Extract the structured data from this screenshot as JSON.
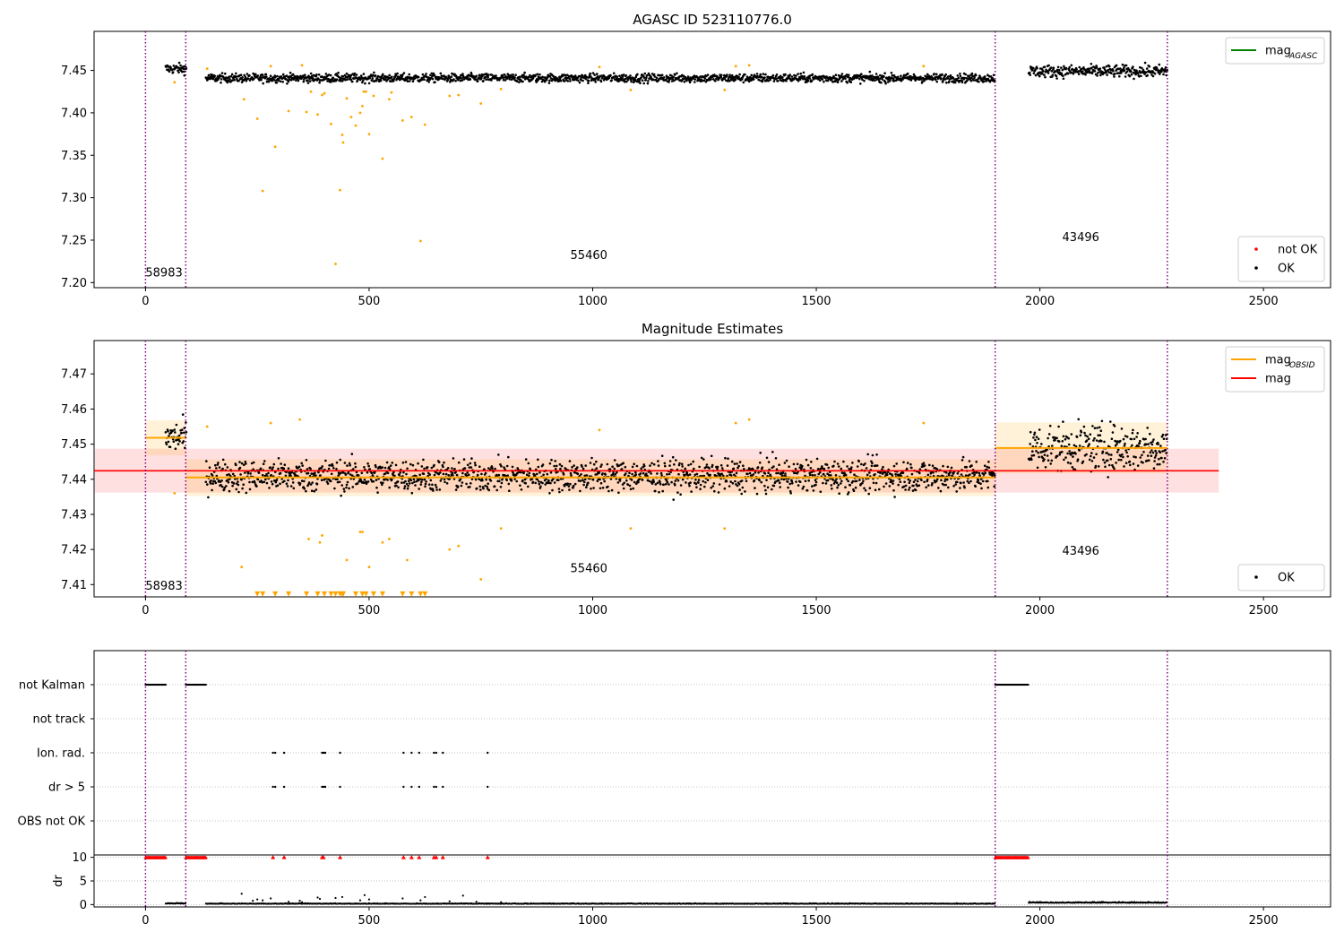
{
  "chart_data": [
    {
      "type": "scatter",
      "title": "AGASC ID 523110776.0",
      "xlabel": "",
      "ylabel": "",
      "xlim": [
        -115,
        2650
      ],
      "ylim": [
        7.194,
        7.496
      ],
      "yticks": [
        "7.20",
        "7.25",
        "7.30",
        "7.35",
        "7.40",
        "7.45"
      ],
      "xticks": [
        "0",
        "500",
        "1000",
        "1500",
        "2000",
        "2500"
      ],
      "obsid_bounds": [
        0,
        90,
        1900,
        2285
      ],
      "obsids": [
        {
          "label": "58983",
          "x": 0,
          "y": 7.207
        },
        {
          "label": "55460",
          "x": 950,
          "y": 7.228
        },
        {
          "label": "43496",
          "x": 2050,
          "y": 7.249
        }
      ],
      "legends": [
        {
          "position": "top-right",
          "entries": [
            {
              "label": "mag",
              "sub": "AGASC",
              "color": "#008000",
              "kind": "line"
            }
          ]
        },
        {
          "position": "bottom-right",
          "entries": [
            {
              "label": "not OK",
              "color": "#ff0000",
              "kind": "dot"
            },
            {
              "label": "OK",
              "color": "#000000",
              "kind": "dot"
            }
          ]
        }
      ],
      "series": [
        {
          "name": "OK",
          "color": "#000000",
          "segments": [
            {
              "x0": 45,
              "x1": 92,
              "mean": 7.452,
              "spread": 0.006
            },
            {
              "x0": 135,
              "x1": 1900,
              "mean": 7.441,
              "spread": 0.005
            },
            {
              "x0": 1975,
              "x1": 2285,
              "mean": 7.449,
              "spread": 0.007
            }
          ]
        },
        {
          "name": "not OK",
          "color": "#ffa500",
          "points": [
            [
              65,
              7.436
            ],
            [
              138,
              7.452
            ],
            [
              220,
              7.416
            ],
            [
              250,
              7.393
            ],
            [
              262,
              7.308
            ],
            [
              280,
              7.455
            ],
            [
              290,
              7.36
            ],
            [
              320,
              7.402
            ],
            [
              350,
              7.456
            ],
            [
              360,
              7.401
            ],
            [
              370,
              7.425
            ],
            [
              385,
              7.398
            ],
            [
              395,
              7.421
            ],
            [
              400,
              7.423
            ],
            [
              415,
              7.387
            ],
            [
              425,
              7.222
            ],
            [
              435,
              7.309
            ],
            [
              440,
              7.374
            ],
            [
              442,
              7.365
            ],
            [
              450,
              7.417
            ],
            [
              460,
              7.395
            ],
            [
              470,
              7.385
            ],
            [
              480,
              7.4
            ],
            [
              485,
              7.408
            ],
            [
              488,
              7.425
            ],
            [
              493,
              7.425
            ],
            [
              500,
              7.375
            ],
            [
              510,
              7.42
            ],
            [
              530,
              7.346
            ],
            [
              545,
              7.416
            ],
            [
              550,
              7.424
            ],
            [
              575,
              7.391
            ],
            [
              595,
              7.395
            ],
            [
              615,
              7.249
            ],
            [
              625,
              7.386
            ],
            [
              680,
              7.42
            ],
            [
              700,
              7.421
            ],
            [
              750,
              7.411
            ],
            [
              795,
              7.428
            ],
            [
              1015,
              7.454
            ],
            [
              1085,
              7.427
            ],
            [
              1295,
              7.427
            ],
            [
              1320,
              7.455
            ],
            [
              1350,
              7.456
            ],
            [
              1740,
              7.455
            ]
          ]
        }
      ]
    },
    {
      "type": "scatter",
      "title": "Magnitude Estimates",
      "xlabel": "",
      "ylabel": "",
      "xlim": [
        -115,
        2650
      ],
      "ylim": [
        7.4065,
        7.4795
      ],
      "yticks": [
        "7.41",
        "7.42",
        "7.43",
        "7.44",
        "7.45",
        "7.46",
        "7.47"
      ],
      "xticks": [
        "0",
        "500",
        "1000",
        "1500",
        "2000",
        "2500"
      ],
      "obsid_bounds": [
        0,
        90,
        1900,
        2285
      ],
      "obsids": [
        {
          "label": "58983",
          "x": 0,
          "y": 7.4085
        },
        {
          "label": "55460",
          "x": 950,
          "y": 7.4135
        },
        {
          "label": "43496",
          "x": 2050,
          "y": 7.4185
        }
      ],
      "legends": [
        {
          "position": "top-right",
          "entries": [
            {
              "label": "mag",
              "sub": "OBSID",
              "color": "#ffa500",
              "kind": "line"
            },
            {
              "label": "mag",
              "color": "#ff0000",
              "kind": "line"
            }
          ]
        },
        {
          "position": "bottom-right",
          "entries": [
            {
              "label": "OK",
              "color": "#000000",
              "kind": "dot"
            }
          ]
        }
      ],
      "mag": {
        "value": 7.4424,
        "band": [
          7.4362,
          7.4487
        ],
        "x0": -115,
        "x1": 2400,
        "color": "#ff0000"
      },
      "mag_obsid": [
        {
          "x0": 0,
          "x1": 90,
          "value": 7.4518,
          "band": [
            7.4468,
            7.4568
          ]
        },
        {
          "x0": 90,
          "x1": 1900,
          "value": 7.4405,
          "band": [
            7.4352,
            7.4457
          ]
        },
        {
          "x0": 1900,
          "x1": 2285,
          "value": 7.4489,
          "band": [
            7.4417,
            7.4562
          ]
        }
      ],
      "series": [
        {
          "name": "OK",
          "color": "#000000",
          "segments": [
            {
              "x0": 45,
              "x1": 92,
              "mean": 7.452,
              "spread": 0.0045
            },
            {
              "x0": 135,
              "x1": 1900,
              "mean": 7.441,
              "spread": 0.0045
            },
            {
              "x0": 1975,
              "x1": 2285,
              "mean": 7.449,
              "spread": 0.0065
            }
          ]
        },
        {
          "name": "not OK",
          "color": "#ffa500",
          "points": [
            [
              65,
              7.436
            ],
            [
              138,
              7.455
            ],
            [
              215,
              7.415
            ],
            [
              280,
              7.456
            ],
            [
              345,
              7.457
            ],
            [
              365,
              7.423
            ],
            [
              390,
              7.422
            ],
            [
              395,
              7.424
            ],
            [
              450,
              7.417
            ],
            [
              480,
              7.425
            ],
            [
              485,
              7.425
            ],
            [
              500,
              7.415
            ],
            [
              530,
              7.422
            ],
            [
              545,
              7.423
            ],
            [
              585,
              7.417
            ],
            [
              680,
              7.42
            ],
            [
              700,
              7.421
            ],
            [
              750,
              7.4115
            ],
            [
              795,
              7.426
            ],
            [
              1015,
              7.454
            ],
            [
              1085,
              7.426
            ],
            [
              1295,
              7.426
            ],
            [
              1320,
              7.456
            ],
            [
              1350,
              7.457
            ],
            [
              1740,
              7.456
            ]
          ]
        },
        {
          "name": "below range",
          "color": "#ffa500",
          "marker": "triangle-down",
          "y": 7.4073,
          "x": [
            250,
            262,
            290,
            320,
            360,
            385,
            400,
            415,
            425,
            435,
            440,
            442,
            470,
            485,
            493,
            510,
            530,
            575,
            595,
            615,
            625
          ]
        }
      ]
    },
    {
      "type": "scatter",
      "title": "",
      "xlabel": "",
      "ylabel": "",
      "xlim": [
        -115,
        2650
      ],
      "categories": [
        "not Kalman",
        "not track",
        "Ion. rad.",
        "dr > 5",
        "OBS not OK"
      ],
      "obsid_bounds": [
        0,
        90,
        1900,
        2285
      ],
      "flags": {
        "not Kalman": [
          [
            0,
            45
          ],
          [
            90,
            135
          ],
          [
            1900,
            1975
          ]
        ],
        "not track": [],
        "Ion. rad.": [
          285,
          290,
          310,
          395,
          398,
          402,
          435,
          577,
          595,
          612,
          645,
          650,
          665,
          765
        ],
        "dr > 5": [
          285,
          290,
          310,
          395,
          398,
          402,
          435,
          577,
          595,
          612,
          645,
          650,
          665,
          765
        ],
        "OBS not OK": []
      }
    },
    {
      "type": "scatter",
      "title": "",
      "xlabel": "",
      "ylabel": "dr",
      "xlim": [
        -115,
        2650
      ],
      "ylim": [
        -0.5,
        10.5
      ],
      "yticks": [
        "0",
        "5",
        "10"
      ],
      "xticks": [
        "0",
        "500",
        "1000",
        "1500",
        "2000",
        "2500"
      ],
      "obsid_bounds": [
        0,
        90,
        1900,
        2285
      ],
      "series": [
        {
          "name": "dr",
          "color": "#000000",
          "segments": [
            {
              "x0": 45,
              "x1": 90,
              "mean": 0.2,
              "spread": 0.15
            },
            {
              "x0": 135,
              "x1": 1900,
              "mean": 0.15,
              "spread": 0.12
            },
            {
              "x0": 1975,
              "x1": 2285,
              "mean": 0.35,
              "spread": 0.2
            }
          ],
          "outliers": [
            [
              215,
              2.3
            ],
            [
              240,
              0.8
            ],
            [
              250,
              1.1
            ],
            [
              262,
              0.9
            ],
            [
              280,
              1.3
            ],
            [
              320,
              0.6
            ],
            [
              345,
              0.8
            ],
            [
              350,
              0.5
            ],
            [
              385,
              1.5
            ],
            [
              390,
              1.2
            ],
            [
              425,
              1.4
            ],
            [
              440,
              1.6
            ],
            [
              480,
              0.9
            ],
            [
              490,
              2.0
            ],
            [
              500,
              1.1
            ],
            [
              575,
              1.3
            ],
            [
              615,
              0.9
            ],
            [
              625,
              1.6
            ],
            [
              680,
              0.7
            ],
            [
              710,
              1.9
            ],
            [
              740,
              0.6
            ],
            [
              795,
              0.5
            ]
          ]
        },
        {
          "name": "dr capped",
          "color": "#ff0000",
          "y": 10,
          "ranges": [
            [
              0,
              45
            ],
            [
              90,
              135
            ],
            [
              1900,
              1975
            ]
          ],
          "points": [
            285,
            310,
            395,
            398,
            435,
            577,
            595,
            612,
            645,
            650,
            665,
            765
          ]
        }
      ]
    }
  ]
}
